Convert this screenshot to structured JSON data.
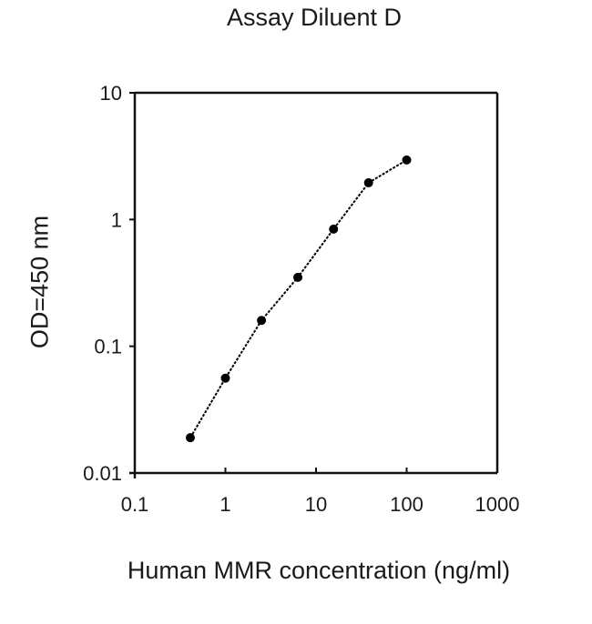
{
  "chart_data": {
    "type": "line",
    "title": "Assay Diluent D",
    "xlabel": "Human MMR concentration (ng/ml)",
    "ylabel": "OD=450 nm",
    "xscale": "log",
    "yscale": "log",
    "xlim": [
      0.1,
      1000
    ],
    "ylim": [
      0.01,
      10
    ],
    "xticks": [
      "0.1",
      "1",
      "10",
      "100",
      "1000"
    ],
    "yticks": [
      "0.01",
      "0.1",
      "1",
      "10"
    ],
    "grid": false,
    "legend": null,
    "series": [
      {
        "name": "Assay Diluent D",
        "marker": "circle",
        "color": "#000000",
        "x": [
          0.41,
          1.0,
          2.5,
          6.3,
          15.6,
          38,
          100
        ],
        "y": [
          0.019,
          0.056,
          0.16,
          0.35,
          0.84,
          1.95,
          2.95
        ]
      }
    ]
  }
}
